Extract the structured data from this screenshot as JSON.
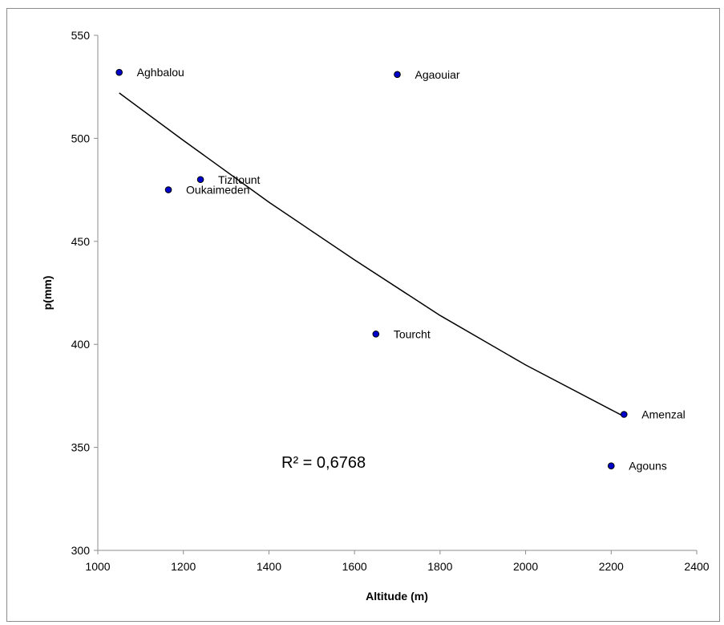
{
  "chart_data": {
    "type": "scatter",
    "title": "",
    "xlabel": "Altitude (m)",
    "ylabel": "p(mm)",
    "xlim": [
      1000,
      2400
    ],
    "ylim": [
      300,
      550
    ],
    "x_ticks": [
      1000,
      1200,
      1400,
      1600,
      1800,
      2000,
      2200,
      2400
    ],
    "y_ticks": [
      300,
      350,
      400,
      450,
      500,
      550
    ],
    "grid": false,
    "legend": "none",
    "marker_color": "#0000cc",
    "points": [
      {
        "label": "Aghbalou",
        "x": 1050,
        "y": 532
      },
      {
        "label": "Agaouiar",
        "x": 1700,
        "y": 531
      },
      {
        "label": "Tizitount",
        "x": 1240,
        "y": 480
      },
      {
        "label": "Oukaimeden",
        "x": 1165,
        "y": 475
      },
      {
        "label": "Tourcht",
        "x": 1650,
        "y": 405
      },
      {
        "label": "Amenzal",
        "x": 2230,
        "y": 366
      },
      {
        "label": "Agouns",
        "x": 2200,
        "y": 341
      }
    ],
    "trendline": {
      "type": "polynomial",
      "r2_text": "R² = 0,6768",
      "x": [
        1050,
        1200,
        1400,
        1600,
        1800,
        2000,
        2230
      ],
      "y": [
        522,
        499,
        469,
        441,
        414,
        390,
        365
      ]
    }
  }
}
